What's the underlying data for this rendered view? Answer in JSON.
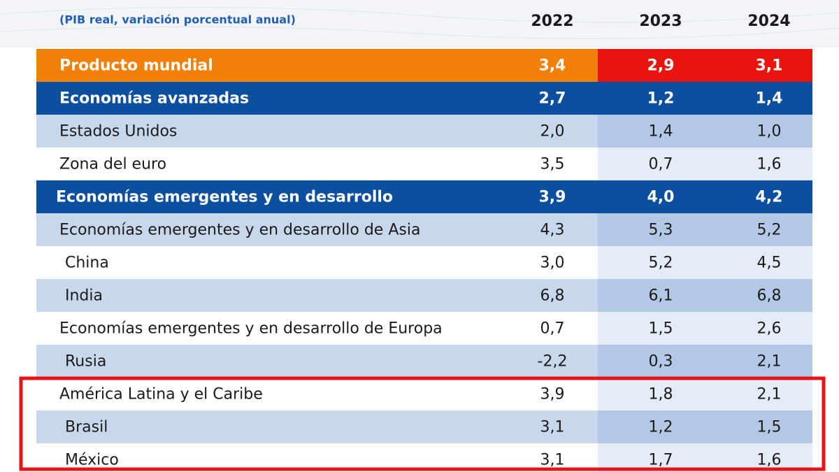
{
  "header": {
    "subtitle": "(PIB real, variación porcentual anual)",
    "years": [
      "2022",
      "2023",
      "2024"
    ]
  },
  "table": {
    "rows": [
      {
        "label": "Producto mundial",
        "values": [
          "3,4",
          "2,9",
          "3,1"
        ]
      },
      {
        "label": "Economías avanzadas",
        "values": [
          "2,7",
          "1,2",
          "1,4"
        ]
      },
      {
        "label": "Estados Unidos",
        "values": [
          "2,0",
          "1,4",
          "1,0"
        ]
      },
      {
        "label": "Zona del euro",
        "values": [
          "3,5",
          "0,7",
          "1,6"
        ]
      },
      {
        "label": "Economías emergentes y en desarrollo",
        "values": [
          "3,9",
          "4,0",
          "4,2"
        ]
      },
      {
        "label": "Economías emergentes y en desarrollo de Asia",
        "values": [
          "4,3",
          "5,3",
          "5,2"
        ]
      },
      {
        "label": "China",
        "values": [
          "3,0",
          "5,2",
          "4,5"
        ]
      },
      {
        "label": "India",
        "values": [
          "6,8",
          "6,1",
          "6,8"
        ]
      },
      {
        "label": "Economías emergentes y en desarrollo de Europa",
        "values": [
          "0,7",
          "1,5",
          "2,6"
        ]
      },
      {
        "label": "Rusia",
        "values": [
          "-2,2",
          "0,3",
          "2,1"
        ]
      },
      {
        "label": "América Latina y el Caribe",
        "values": [
          "3,9",
          "1,8",
          "2,1"
        ]
      },
      {
        "label": "Brasil",
        "values": [
          "3,1",
          "1,2",
          "1,5"
        ]
      },
      {
        "label": "México",
        "values": [
          "3,1",
          "1,7",
          "1,6"
        ]
      }
    ]
  }
}
